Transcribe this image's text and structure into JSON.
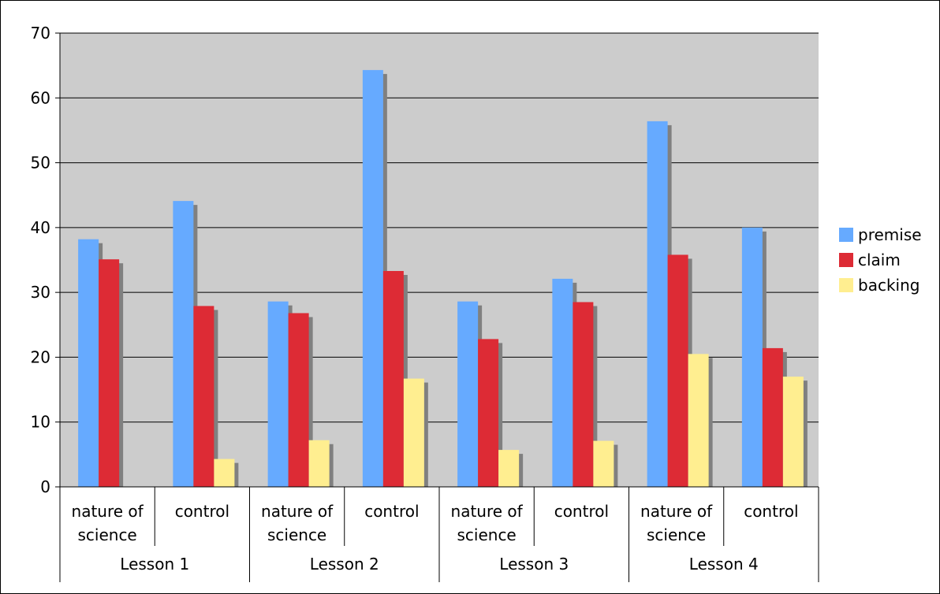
{
  "chart_data": {
    "type": "bar",
    "ylim": [
      0,
      70
    ],
    "yticks": [
      0,
      10,
      20,
      30,
      40,
      50,
      60,
      70
    ],
    "grid": true,
    "legend_position": "right",
    "groups": [
      "Lesson 1",
      "Lesson 2",
      "Lesson 3",
      "Lesson 4"
    ],
    "categories": [
      {
        "group": "Lesson 1",
        "lines": [
          "nature of",
          "science"
        ]
      },
      {
        "group": "Lesson 1",
        "lines": [
          "control"
        ]
      },
      {
        "group": "Lesson 2",
        "lines": [
          "nature of",
          "science"
        ]
      },
      {
        "group": "Lesson 2",
        "lines": [
          "control"
        ]
      },
      {
        "group": "Lesson 3",
        "lines": [
          "nature of",
          "science"
        ]
      },
      {
        "group": "Lesson 3",
        "lines": [
          "control"
        ]
      },
      {
        "group": "Lesson 4",
        "lines": [
          "nature of",
          "science"
        ]
      },
      {
        "group": "Lesson 4",
        "lines": [
          "control"
        ]
      }
    ],
    "series": [
      {
        "name": "premise",
        "color": "#66aaff",
        "values": [
          38.2,
          44.1,
          28.6,
          64.3,
          28.6,
          32.1,
          56.4,
          40.0
        ]
      },
      {
        "name": "claim",
        "color": "#dd2b35",
        "values": [
          35.1,
          27.9,
          26.8,
          33.3,
          22.8,
          28.5,
          35.8,
          21.4
        ]
      },
      {
        "name": "backing",
        "color": "#ffee90",
        "values": [
          0,
          4.3,
          7.2,
          16.7,
          5.7,
          7.1,
          20.5,
          17.0
        ]
      }
    ]
  }
}
